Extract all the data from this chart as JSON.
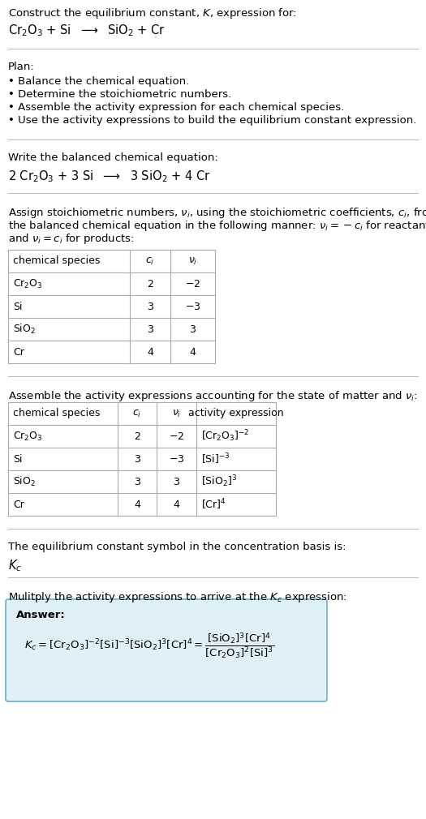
{
  "title_line1": "Construct the equilibrium constant, $K$, expression for:",
  "reaction_unbalanced": "Cr$_2$O$_3$ + Si  $\\longrightarrow$  SiO$_2$ + Cr",
  "plan_header": "Plan:",
  "plan_bullets": [
    "Balance the chemical equation.",
    "Determine the stoichiometric numbers.",
    "Assemble the activity expression for each chemical species.",
    "Use the activity expressions to build the equilibrium constant expression."
  ],
  "balanced_header": "Write the balanced chemical equation:",
  "balanced_eq": "2 Cr$_2$O$_3$ + 3 Si  $\\longrightarrow$  3 SiO$_2$ + 4 Cr",
  "stoich_intro_lines": [
    "Assign stoichiometric numbers, $\\nu_i$, using the stoichiometric coefficients, $c_i$, from",
    "the balanced chemical equation in the following manner: $\\nu_i = -c_i$ for reactants",
    "and $\\nu_i = c_i$ for products:"
  ],
  "table1_headers": [
    "chemical species",
    "$c_i$",
    "$\\nu_i$"
  ],
  "table1_rows": [
    [
      "Cr$_2$O$_3$",
      "2",
      "$-2$"
    ],
    [
      "Si",
      "3",
      "$-3$"
    ],
    [
      "SiO$_2$",
      "3",
      "3"
    ],
    [
      "Cr",
      "4",
      "4"
    ]
  ],
  "activity_intro": "Assemble the activity expressions accounting for the state of matter and $\\nu_i$:",
  "table2_headers": [
    "chemical species",
    "$c_i$",
    "$\\nu_i$",
    "activity expression"
  ],
  "table2_rows": [
    [
      "Cr$_2$O$_3$",
      "2",
      "$-2$",
      "$[\\mathrm{Cr_2O_3}]^{-2}$"
    ],
    [
      "Si",
      "3",
      "$-3$",
      "$[\\mathrm{Si}]^{-3}$"
    ],
    [
      "SiO$_2$",
      "3",
      "3",
      "$[\\mathrm{SiO_2}]^{3}$"
    ],
    [
      "Cr",
      "4",
      "4",
      "$[\\mathrm{Cr}]^{4}$"
    ]
  ],
  "kc_text": "The equilibrium constant symbol in the concentration basis is:",
  "kc_symbol": "$K_c$",
  "multiply_text": "Mulitply the activity expressions to arrive at the $K_c$ expression:",
  "answer_label": "Answer:",
  "answer_box_facecolor": "#dff0f7",
  "answer_box_edgecolor": "#6ab0cc",
  "bg_color": "#ffffff",
  "text_color": "#000000",
  "table_border_color": "#aaaaaa",
  "separator_color": "#bbbbbb",
  "font_size_body": 9.5,
  "font_size_eq": 10.5,
  "font_size_table": 9.0
}
